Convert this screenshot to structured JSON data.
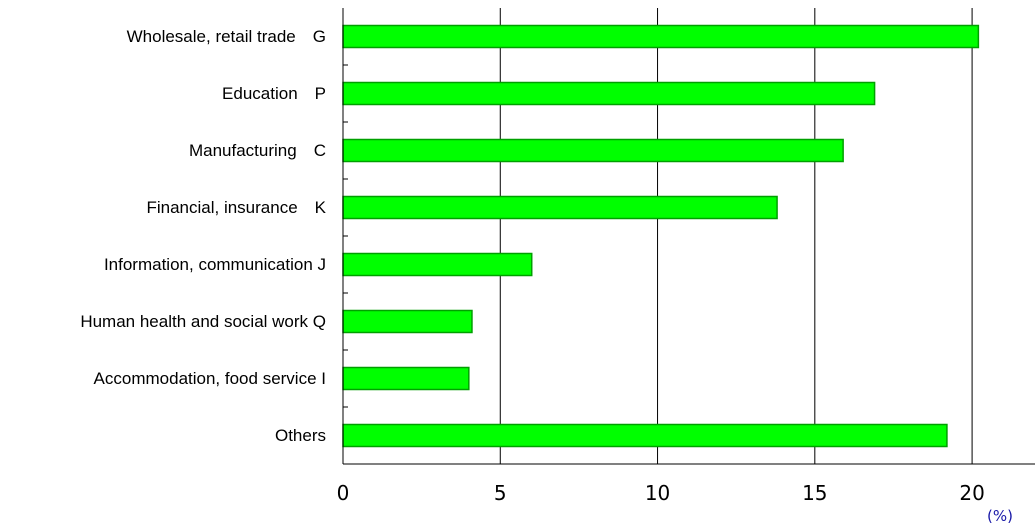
{
  "chart_data": {
    "type": "bar",
    "orientation": "horizontal",
    "categories": [
      "Wholesale, retail trade　G",
      "Education　P",
      "Manufacturing　C",
      "Financial, insurance　K",
      "Information, communication J",
      "Human health and social work  Q",
      "Accommodation, food service I",
      "Others"
    ],
    "values": [
      20.2,
      16.9,
      15.9,
      13.8,
      6.0,
      4.1,
      4.0,
      19.2
    ],
    "xlim": [
      0,
      22
    ],
    "xticks": [
      0,
      5,
      10,
      15,
      20
    ],
    "xtick_labels": [
      "0",
      "5",
      "10",
      "15",
      "20"
    ],
    "unit_label": "(%)",
    "grid": "vertical",
    "bar_color": "#00ff00",
    "bar_edge_color": "#00a000"
  }
}
